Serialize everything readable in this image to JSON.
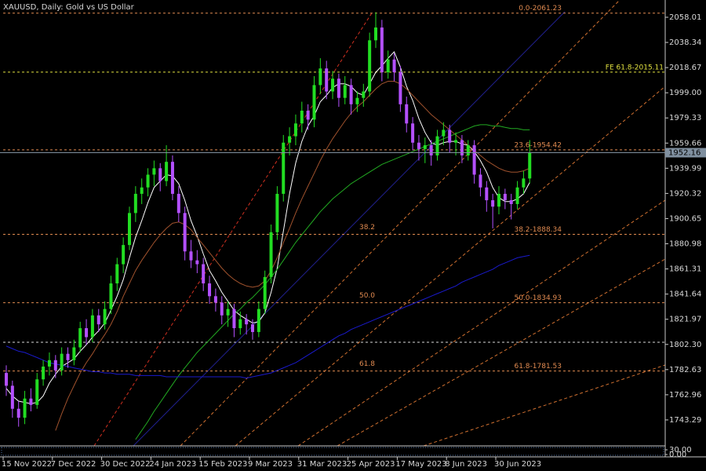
{
  "chart_data": {
    "type": "candlestick",
    "title": "XAUUSD, Daily:  Gold vs US Dollar",
    "up_color": "#22dd22",
    "down_color": "#b450ff",
    "categories": [
      "15 Nov 2022",
      null,
      null,
      null,
      null,
      null,
      null,
      null,
      "7 Dec 2022",
      null,
      null,
      null,
      null,
      null,
      null,
      null,
      "30 Dec 2022",
      null,
      null,
      null,
      null,
      null,
      null,
      null,
      "24 Jan 2023",
      null,
      null,
      null,
      null,
      null,
      null,
      null,
      "15 Feb 2023",
      null,
      null,
      null,
      null,
      null,
      null,
      null,
      "9 Mar 2023",
      null,
      null,
      null,
      null,
      null,
      null,
      null,
      "31 Mar 2023",
      null,
      null,
      null,
      null,
      null,
      null,
      null,
      "25 Apr 2023",
      null,
      null,
      null,
      null,
      null,
      null,
      null,
      "17 May 2023",
      null,
      null,
      null,
      null,
      null,
      null,
      null,
      "8 Jun 2023",
      null,
      null,
      null,
      null,
      null,
      null,
      null,
      "30 Jun 2023",
      null,
      null,
      null,
      null,
      null
    ],
    "ohlc": [
      [
        1780,
        1786,
        1762,
        1770
      ],
      [
        1770,
        1774,
        1745,
        1752
      ],
      [
        1752,
        1758,
        1738,
        1745
      ],
      [
        1745,
        1766,
        1740,
        1760
      ],
      [
        1760,
        1768,
        1750,
        1755
      ],
      [
        1755,
        1780,
        1752,
        1775
      ],
      [
        1775,
        1790,
        1770,
        1785
      ],
      [
        1785,
        1796,
        1778,
        1790
      ],
      [
        1790,
        1794,
        1776,
        1782
      ],
      [
        1782,
        1800,
        1778,
        1795
      ],
      [
        1795,
        1800,
        1784,
        1790
      ],
      [
        1790,
        1806,
        1786,
        1800
      ],
      [
        1800,
        1820,
        1796,
        1815
      ],
      [
        1815,
        1822,
        1802,
        1808
      ],
      [
        1808,
        1830,
        1804,
        1825
      ],
      [
        1825,
        1830,
        1812,
        1818
      ],
      [
        1818,
        1836,
        1814,
        1830
      ],
      [
        1830,
        1856,
        1826,
        1850
      ],
      [
        1850,
        1870,
        1844,
        1865
      ],
      [
        1865,
        1886,
        1858,
        1880
      ],
      [
        1880,
        1910,
        1876,
        1905
      ],
      [
        1905,
        1926,
        1898,
        1920
      ],
      [
        1920,
        1932,
        1912,
        1925
      ],
      [
        1925,
        1940,
        1918,
        1935
      ],
      [
        1935,
        1946,
        1926,
        1940
      ],
      [
        1940,
        1944,
        1922,
        1930
      ],
      [
        1930,
        1958,
        1926,
        1945
      ],
      [
        1945,
        1950,
        1915,
        1920
      ],
      [
        1920,
        1926,
        1898,
        1905
      ],
      [
        1905,
        1910,
        1868,
        1875
      ],
      [
        1875,
        1884,
        1862,
        1868
      ],
      [
        1868,
        1876,
        1858,
        1865
      ],
      [
        1865,
        1870,
        1844,
        1850
      ],
      [
        1850,
        1856,
        1834,
        1840
      ],
      [
        1840,
        1846,
        1828,
        1835
      ],
      [
        1835,
        1840,
        1818,
        1825
      ],
      [
        1825,
        1836,
        1816,
        1830
      ],
      [
        1830,
        1834,
        1808,
        1815
      ],
      [
        1815,
        1828,
        1810,
        1822
      ],
      [
        1822,
        1826,
        1810,
        1818
      ],
      [
        1818,
        1822,
        1806,
        1812
      ],
      [
        1812,
        1836,
        1808,
        1830
      ],
      [
        1830,
        1860,
        1826,
        1855
      ],
      [
        1855,
        1896,
        1850,
        1890
      ],
      [
        1890,
        1926,
        1884,
        1920
      ],
      [
        1920,
        1966,
        1914,
        1960
      ],
      [
        1960,
        1972,
        1950,
        1965
      ],
      [
        1965,
        1982,
        1958,
        1975
      ],
      [
        1975,
        1992,
        1968,
        1985
      ],
      [
        1985,
        1990,
        1970,
        1978
      ],
      [
        1978,
        2012,
        1972,
        2005
      ],
      [
        2005,
        2026,
        1998,
        2018
      ],
      [
        2018,
        2024,
        1994,
        2000
      ],
      [
        2000,
        2016,
        1994,
        2010
      ],
      [
        2010,
        2014,
        1988,
        1995
      ],
      [
        1995,
        2012,
        1990,
        2005
      ],
      [
        2005,
        2010,
        1982,
        1990
      ],
      [
        1990,
        2000,
        1984,
        1995
      ],
      [
        1995,
        2006,
        1988,
        2000
      ],
      [
        2000,
        2046,
        1996,
        2040
      ],
      [
        2040,
        2062,
        2034,
        2050
      ],
      [
        2050,
        2056,
        2008,
        2015
      ],
      [
        2015,
        2032,
        2010,
        2025
      ],
      [
        2025,
        2030,
        2008,
        2015
      ],
      [
        2015,
        2020,
        1984,
        1990
      ],
      [
        1990,
        1996,
        1968,
        1975
      ],
      [
        1975,
        1980,
        1954,
        1960
      ],
      [
        1960,
        1966,
        1946,
        1955
      ],
      [
        1955,
        1964,
        1944,
        1958
      ],
      [
        1958,
        1962,
        1942,
        1950
      ],
      [
        1950,
        1970,
        1946,
        1965
      ],
      [
        1965,
        1976,
        1958,
        1970
      ],
      [
        1970,
        1974,
        1952,
        1960
      ],
      [
        1960,
        1968,
        1950,
        1962
      ],
      [
        1962,
        1966,
        1944,
        1950
      ],
      [
        1950,
        1962,
        1946,
        1958
      ],
      [
        1958,
        1962,
        1928,
        1935
      ],
      [
        1935,
        1940,
        1918,
        1925
      ],
      [
        1925,
        1930,
        1906,
        1915
      ],
      [
        1915,
        1920,
        1893,
        1910
      ],
      [
        1910,
        1926,
        1904,
        1920
      ],
      [
        1920,
        1924,
        1908,
        1915
      ],
      [
        1915,
        1920,
        1900,
        1912
      ],
      [
        1912,
        1930,
        1908,
        1925
      ],
      [
        1925,
        1938,
        1920,
        1932
      ],
      [
        1932,
        1962,
        1928,
        1952.16
      ]
    ],
    "moving_averages": [
      {
        "color": "#ffffff",
        "values": [
          1768,
          1762,
          1758,
          1757,
          1756,
          1757,
          1762,
          1772,
          1779,
          1785,
          1788,
          1791,
          1797,
          1802,
          1808,
          1813,
          1819,
          1829,
          1840,
          1853,
          1870,
          1886,
          1899,
          1913,
          1925,
          1930,
          1935,
          1934,
          1928,
          1915,
          1899,
          1887,
          1873,
          1860,
          1852,
          1843,
          1836,
          1829,
          1825,
          1822,
          1819,
          1820,
          1827,
          1843,
          1862,
          1891,
          1920,
          1944,
          1961,
          1973,
          1981,
          1992,
          1997,
          2003,
          2006,
          2006,
          2004,
          1999,
          1997,
          2006,
          2015,
          2020,
          2026,
          2031,
          2019,
          2004,
          1993,
          1979,
          1968,
          1960,
          1958,
          1960,
          1961,
          1961,
          1959,
          1958,
          1953,
          1946,
          1937,
          1925,
          1917,
          1914,
          1914,
          1916,
          1920,
          1929
        ]
      },
      {
        "color": "#a0522d",
        "values": [
          null,
          null,
          null,
          null,
          null,
          null,
          null,
          null,
          1735,
          1748,
          1760,
          1770,
          1780,
          1788,
          1795,
          1803,
          1810,
          1818,
          1828,
          1840,
          1850,
          1860,
          1868,
          1875,
          1882,
          1888,
          1893,
          1897,
          1898,
          1896,
          1892,
          1886,
          1880,
          1874,
          1868,
          1862,
          1857,
          1853,
          1850,
          1848,
          1847,
          1848,
          1852,
          1860,
          1870,
          1882,
          1893,
          1905,
          1916,
          1926,
          1936,
          1946,
          1955,
          1963,
          1970,
          1977,
          1983,
          1988,
          1992,
          1997,
          2002,
          2006,
          2008,
          2008,
          2006,
          2002,
          1997,
          1992,
          1987,
          1982,
          1978,
          1974,
          1970,
          1966,
          1962,
          1958,
          1954,
          1950,
          1946,
          1943,
          1940,
          1938,
          1937,
          1937,
          1938,
          1940
        ]
      },
      {
        "color": "#22aa22",
        "values": [
          null,
          null,
          null,
          null,
          null,
          null,
          null,
          null,
          null,
          null,
          null,
          null,
          null,
          null,
          null,
          null,
          null,
          null,
          null,
          null,
          null,
          1728,
          1735,
          1742,
          1750,
          1757,
          1764,
          1771,
          1778,
          1784,
          1790,
          1796,
          1801,
          1806,
          1811,
          1816,
          1821,
          1826,
          1830,
          1835,
          1839,
          1844,
          1849,
          1855,
          1861,
          1868,
          1875,
          1882,
          1888,
          1894,
          1900,
          1906,
          1911,
          1916,
          1920,
          1924,
          1928,
          1931,
          1934,
          1937,
          1940,
          1943,
          1945,
          1947,
          1949,
          1951,
          1953,
          1955,
          1957,
          1959,
          1961,
          1963,
          1965,
          1967,
          1969,
          1971,
          1973,
          1974,
          1974,
          1973,
          1973,
          1972,
          1971,
          1971,
          1970,
          1970
        ]
      },
      {
        "color": "#1a1acd",
        "values": [
          1801,
          1799,
          1797,
          1796,
          1794,
          1792,
          1790,
          1788,
          1787,
          1786,
          1785,
          1784,
          1783,
          1782,
          1781,
          1781,
          1780,
          1780,
          1779,
          1779,
          1779,
          1778,
          1778,
          1778,
          1778,
          1778,
          1777,
          1777,
          1777,
          1777,
          1777,
          1777,
          1777,
          1777,
          1777,
          1777,
          1777,
          1777,
          1777,
          1776,
          1777,
          1778,
          1779,
          1780,
          1782,
          1784,
          1786,
          1788,
          1791,
          1794,
          1797,
          1800,
          1803,
          1806,
          1809,
          1811,
          1814,
          1816,
          1818,
          1820,
          1822,
          1824,
          1826,
          1828,
          1830,
          1832,
          1834,
          1836,
          1838,
          1840,
          1842,
          1844,
          1846,
          1848,
          1851,
          1853,
          1855,
          1857,
          1859,
          1861,
          1864,
          1866,
          1868,
          1870,
          1871,
          1872
        ]
      }
    ],
    "ylim": [
      1723,
      2071.5
    ],
    "yticks": [
      2058.01,
      2038.34,
      2018.67,
      {
        "value": 1999,
        "label": "1999.00"
      },
      1979.33,
      1959.66,
      1939.99,
      1920.32,
      1900.65,
      1880.98,
      1861.31,
      1841.64,
      1821.97,
      {
        "value": 1802.3,
        "label": "1802.30"
      },
      1782.63,
      1762.96,
      1743.29
    ],
    "fib_levels": [
      {
        "value": 2061.23,
        "label": "0.0-2061.23",
        "color": "#e08a50"
      },
      {
        "value": 2015.11,
        "label": "FE 61.8-2015.11",
        "color": "#e0e040"
      },
      {
        "value": 1954.42,
        "label": "23.6-1954.42",
        "color": "#e08a50"
      },
      {
        "value": 1888.34,
        "label": "38.2-1888.34",
        "mid_label": "38.2",
        "color": "#e08a50"
      },
      {
        "value": 1834.93,
        "label": "50.0-1834.93",
        "mid_label": "50.0",
        "color": "#e08a50"
      },
      {
        "value": 1804,
        "color": "#d8d8d8"
      },
      {
        "value": 1781.53,
        "label": "61.8-1781.53",
        "mid_label": "61.8",
        "color": "#e08a50"
      }
    ],
    "last_price": 1952.16,
    "sub_window": {
      "ylim": [
        0,
        30
      ],
      "yticks": [
        {
          "value": 30,
          "label": "30.00"
        },
        {
          "value": 0,
          "label": "0.00"
        }
      ]
    }
  }
}
